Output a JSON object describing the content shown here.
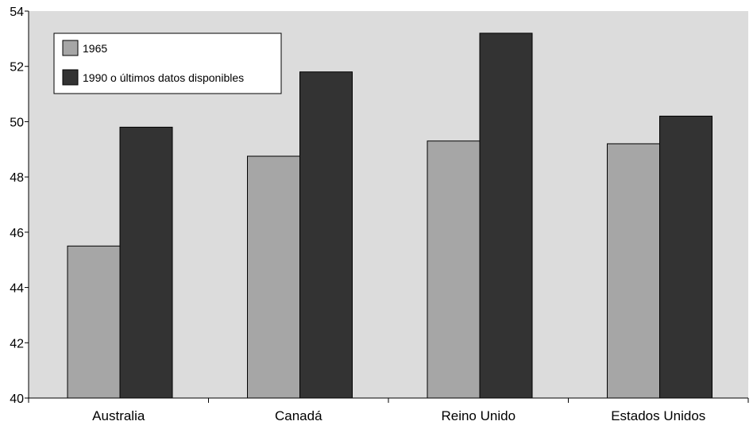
{
  "chart_data": {
    "type": "bar",
    "title": "",
    "xlabel": "",
    "ylabel": "",
    "categories": [
      "Australia",
      "Canadá",
      "Reino Unido",
      "Estados Unidos"
    ],
    "series": [
      {
        "name": "1965",
        "values": [
          45.5,
          48.75,
          49.3,
          49.2
        ],
        "color": "#a6a6a6"
      },
      {
        "name": "1990 o últimos datos disponibles",
        "values": [
          49.8,
          51.8,
          53.2,
          50.2
        ],
        "color": "#333333"
      }
    ],
    "ylim": [
      40,
      54
    ],
    "yticks": [
      "40",
      "42",
      "44",
      "46",
      "48",
      "50",
      "52",
      "54"
    ],
    "grid": false,
    "legend_position": "top-left",
    "plot_background": "#dcdcdc"
  }
}
